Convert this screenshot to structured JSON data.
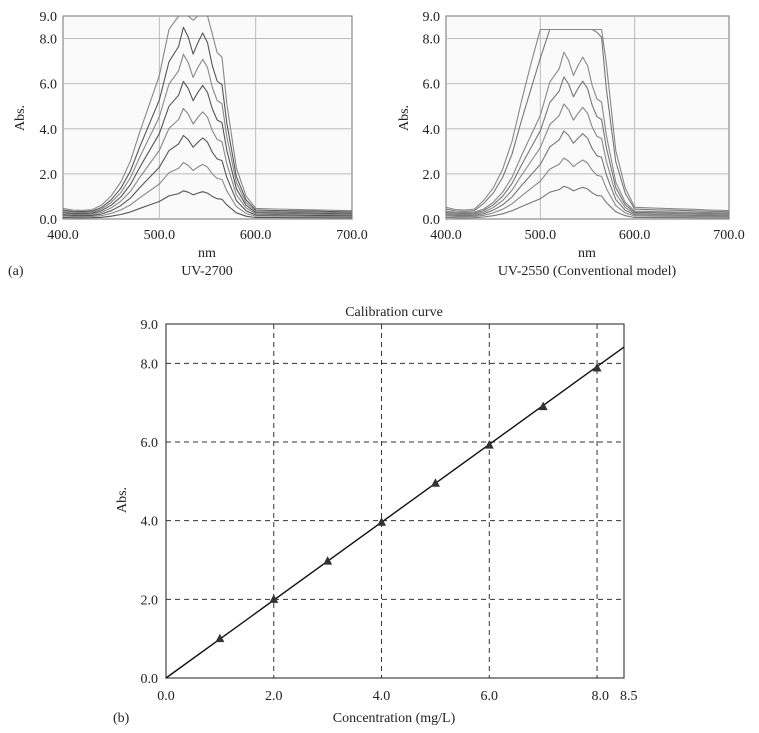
{
  "panel_labels": {
    "a": "(a)",
    "b": "(b)"
  },
  "chart_data": [
    {
      "type": "line",
      "title": "UV-2700",
      "xlabel": "nm",
      "ylabel": "Abs.",
      "xlim": [
        400,
        700
      ],
      "ylim": [
        0,
        9
      ],
      "x_ticks": [
        "400.0",
        "500.0",
        "600.0",
        "700.0"
      ],
      "y_ticks": [
        "0.0",
        "2.0",
        "4.0",
        "6.0",
        "8.0",
        "9.0"
      ],
      "grid": "x at 500 and 600, y at 2, 4, 6, 8",
      "line_color": "#555555",
      "spectrum": {
        "x": [
          400,
          410,
          420,
          430,
          440,
          450,
          460,
          470,
          480,
          490,
          500,
          510,
          520,
          525,
          530,
          535,
          540,
          545,
          550,
          555,
          560,
          565,
          570,
          580,
          590,
          600,
          620,
          640,
          660,
          680,
          700
        ],
        "shape": [
          0.07,
          0.03,
          0.02,
          0.035,
          0.06,
          0.1,
          0.16,
          0.25,
          0.38,
          0.5,
          0.62,
          0.82,
          0.9,
          1.0,
          0.95,
          0.86,
          0.92,
          0.97,
          0.92,
          0.8,
          0.72,
          0.7,
          0.5,
          0.22,
          0.1,
          0.07,
          0.055,
          0.045,
          0.035,
          0.02,
          0.01
        ]
      },
      "series_peak_values": [
        1.0,
        2.0,
        3.0,
        4.0,
        5.0,
        6.0,
        7.0,
        8.5
      ],
      "series_baselines": [
        0.05,
        0.1,
        0.14,
        0.18,
        0.22,
        0.26,
        0.3,
        0.35
      ]
    },
    {
      "type": "line",
      "title": "UV-2550 (Conventional model)",
      "xlabel": "nm",
      "ylabel": "Abs.",
      "xlim": [
        400,
        700
      ],
      "ylim": [
        0,
        9
      ],
      "x_ticks": [
        "400.0",
        "500.0",
        "600.0",
        "700.0"
      ],
      "y_ticks": [
        "0.0",
        "2.0",
        "4.0",
        "6.0",
        "8.0",
        "9.0"
      ],
      "grid": "x at 500 and 600, y at 2, 4, 6, 8",
      "line_color": "#777777",
      "clip_level": 8.4,
      "spectrum": {
        "x": [
          400,
          410,
          420,
          430,
          440,
          450,
          460,
          470,
          480,
          490,
          500,
          510,
          520,
          525,
          530,
          535,
          540,
          545,
          550,
          555,
          560,
          565,
          570,
          580,
          590,
          600,
          620,
          640,
          660,
          680,
          700
        ],
        "shape": [
          0.07,
          0.03,
          0.02,
          0.035,
          0.06,
          0.1,
          0.16,
          0.25,
          0.38,
          0.5,
          0.62,
          0.82,
          0.9,
          1.0,
          0.95,
          0.86,
          0.92,
          0.97,
          0.92,
          0.8,
          0.72,
          0.7,
          0.5,
          0.22,
          0.1,
          0.07,
          0.055,
          0.045,
          0.035,
          0.02,
          0.01
        ]
      },
      "series_peak_values": [
        1.2,
        2.2,
        3.2,
        4.2,
        5.2,
        6.1,
        10.0,
        12.0
      ],
      "series_baselines": [
        0.05,
        0.1,
        0.14,
        0.18,
        0.22,
        0.26,
        0.3,
        0.35
      ]
    },
    {
      "type": "scatter",
      "title": "Calibration curve",
      "xlabel": "Concentration (mg/L)",
      "ylabel": "Abs.",
      "xlim": [
        0,
        8.5
      ],
      "ylim": [
        0,
        9
      ],
      "x_ticks": [
        "0.0",
        "2.0",
        "4.0",
        "6.0",
        "8.0",
        "8.5"
      ],
      "x_tick_values": [
        0,
        2,
        4,
        6,
        8,
        8.5
      ],
      "y_ticks": [
        "0.0",
        "2.0",
        "4.0",
        "6.0",
        "8.0",
        "9.0"
      ],
      "y_tick_values": [
        0,
        2,
        4,
        6,
        8,
        9
      ],
      "grid": "dashed at x = 2, 4, 6, 8 and y = 2, 4, 6, 8",
      "points": {
        "x": [
          1,
          2,
          3,
          4,
          5,
          6,
          7,
          8
        ],
        "y": [
          1.0,
          2.0,
          2.97,
          3.96,
          4.95,
          5.92,
          6.9,
          7.88
        ]
      },
      "fit_line": {
        "slope": 0.99,
        "intercept": 0.0
      },
      "marker_color": "#333333",
      "line_color": "#111111"
    }
  ]
}
